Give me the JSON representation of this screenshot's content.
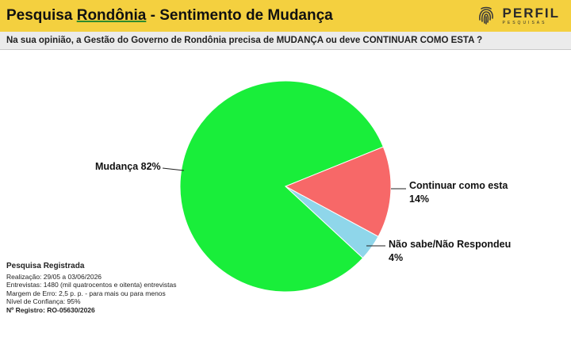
{
  "header": {
    "title_part1": "Pesquisa ",
    "title_part2": "Rondônia",
    "title_part3": " - Sentimento de Mudança",
    "logo_name": "PERFIL",
    "logo_sub": "PESQUISAS",
    "background_color": "#f4d03f"
  },
  "question": "Na sua opinião, a Gestão do Governo de Rondônia precisa de MUDANÇA ou deve CONTINUAR COMO ESTA ?",
  "chart_data": {
    "type": "pie",
    "title": "",
    "slices": [
      {
        "label": "Mudança",
        "value": 82,
        "value_text": "82%",
        "color": "#19ee3a"
      },
      {
        "label": "Continuar como esta",
        "value": 14,
        "value_text": "14%",
        "color": "#f76868"
      },
      {
        "label": "Não sabe/Não Respondeu",
        "value": 4,
        "value_text": "4%",
        "color": "#8fd6ea"
      }
    ],
    "legend": "none"
  },
  "footer": {
    "title": "Pesquisa Registrada",
    "lines": [
      "Realização: 29/05 a 03/06/2026",
      "Entrevistas: 1480 (mil quatrocentos e oitenta) entrevistas",
      "Margem de Erro: 2,5 p. p. - para mais ou para menos",
      "Nível de Confiança: 95%"
    ],
    "registro": "Nº Registro: RO-05630/2026"
  }
}
